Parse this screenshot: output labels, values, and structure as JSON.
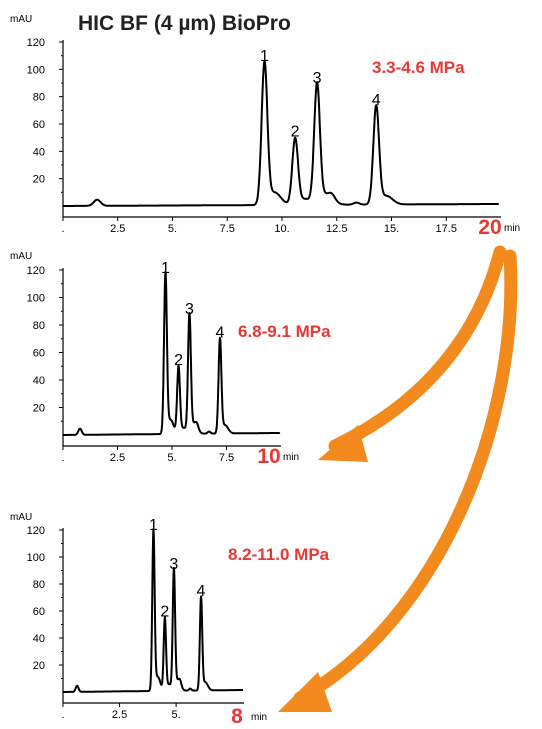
{
  "title": "HIC BF (4 µm) BioPro",
  "colors": {
    "accent": "#e53935",
    "arrow": "#f28a1e",
    "trace": "#000000"
  },
  "chart_data": [
    {
      "type": "line",
      "pressure": "3.3-4.6 MPa",
      "end_time": "20",
      "x_unit": "min",
      "y_unit": "mAU",
      "xlim": [
        0,
        20
      ],
      "ylim": [
        0,
        120
      ],
      "x_ticks": [
        ".",
        "2.5",
        "5.",
        "7.5",
        "10.",
        "12.5",
        "15.",
        "17.5"
      ],
      "y_ticks": [
        "20",
        "40",
        "60",
        "80",
        "100",
        "120"
      ],
      "peaks": [
        {
          "label": "1",
          "rt": 9.2,
          "height": 103
        },
        {
          "label": "2",
          "rt": 10.6,
          "height": 48
        },
        {
          "label": "3",
          "rt": 11.6,
          "height": 87
        },
        {
          "label": "4",
          "rt": 14.3,
          "height": 71
        }
      ]
    },
    {
      "type": "line",
      "pressure": "6.8-9.1 MPa",
      "end_time": "10",
      "x_unit": "min",
      "y_unit": "mAU",
      "xlim": [
        0,
        10
      ],
      "ylim": [
        0,
        120
      ],
      "x_ticks": [
        ".",
        "2.5",
        "5.",
        "7.5"
      ],
      "y_ticks": [
        "20",
        "40",
        "60",
        "80",
        "100",
        "120"
      ],
      "peaks": [
        {
          "label": "1",
          "rt": 4.7,
          "height": 115
        },
        {
          "label": "2",
          "rt": 5.3,
          "height": 48
        },
        {
          "label": "3",
          "rt": 5.8,
          "height": 85
        },
        {
          "label": "4",
          "rt": 7.2,
          "height": 68
        }
      ]
    },
    {
      "type": "line",
      "pressure": "8.2-11.0 MPa",
      "end_time": "8",
      "x_unit": "min",
      "y_unit": "mAU",
      "xlim": [
        0,
        8
      ],
      "ylim": [
        0,
        120
      ],
      "x_ticks": [
        ".",
        "2.5",
        "5."
      ],
      "y_ticks": [
        "20",
        "40",
        "60",
        "80",
        "100",
        "120"
      ],
      "peaks": [
        {
          "label": "1",
          "rt": 4.0,
          "height": 117
        },
        {
          "label": "2",
          "rt": 4.5,
          "height": 53
        },
        {
          "label": "3",
          "rt": 4.9,
          "height": 88
        },
        {
          "label": "4",
          "rt": 6.1,
          "height": 68
        }
      ]
    }
  ]
}
